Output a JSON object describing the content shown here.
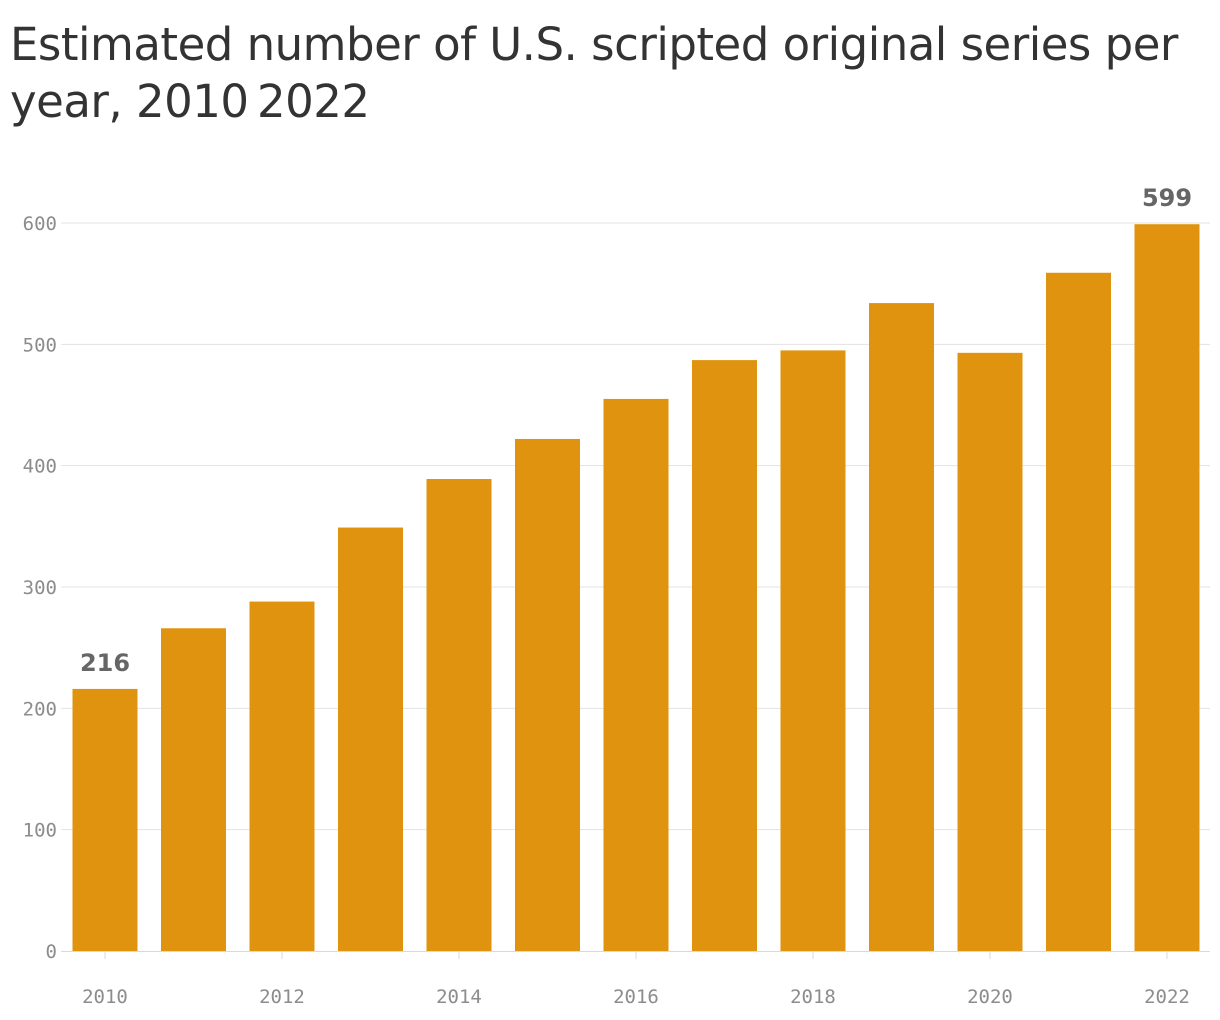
{
  "chart_data": {
    "type": "bar",
    "title": "Estimated number of U.S. scripted original series per year, 2010 2022",
    "xlabel": "",
    "ylabel": "",
    "categories": [
      "2010",
      "2011",
      "2012",
      "2013",
      "2014",
      "2015",
      "2016",
      "2017",
      "2018",
      "2019",
      "2020",
      "2021",
      "2022"
    ],
    "values": [
      216,
      266,
      288,
      349,
      389,
      422,
      455,
      487,
      495,
      534,
      493,
      559,
      599
    ],
    "ylim": [
      0,
      600
    ],
    "y_ticks": [
      "0",
      "100",
      "200",
      "300",
      "400",
      "500",
      "600"
    ],
    "x_ticks": [
      "2010",
      "2012",
      "2014",
      "2016",
      "2018",
      "2020",
      "2022"
    ],
    "data_labels": [
      {
        "category": "2010",
        "text": "216"
      },
      {
        "category": "2022",
        "text": "599"
      }
    ],
    "grid": true,
    "legend": "none",
    "colors": {
      "bar": "#e0930f",
      "grid": "#e3e3e3",
      "axis": "#d9d9d9",
      "title": "#333333",
      "tick_text": "#8c8c8c",
      "data_label_text": "#666666"
    }
  }
}
